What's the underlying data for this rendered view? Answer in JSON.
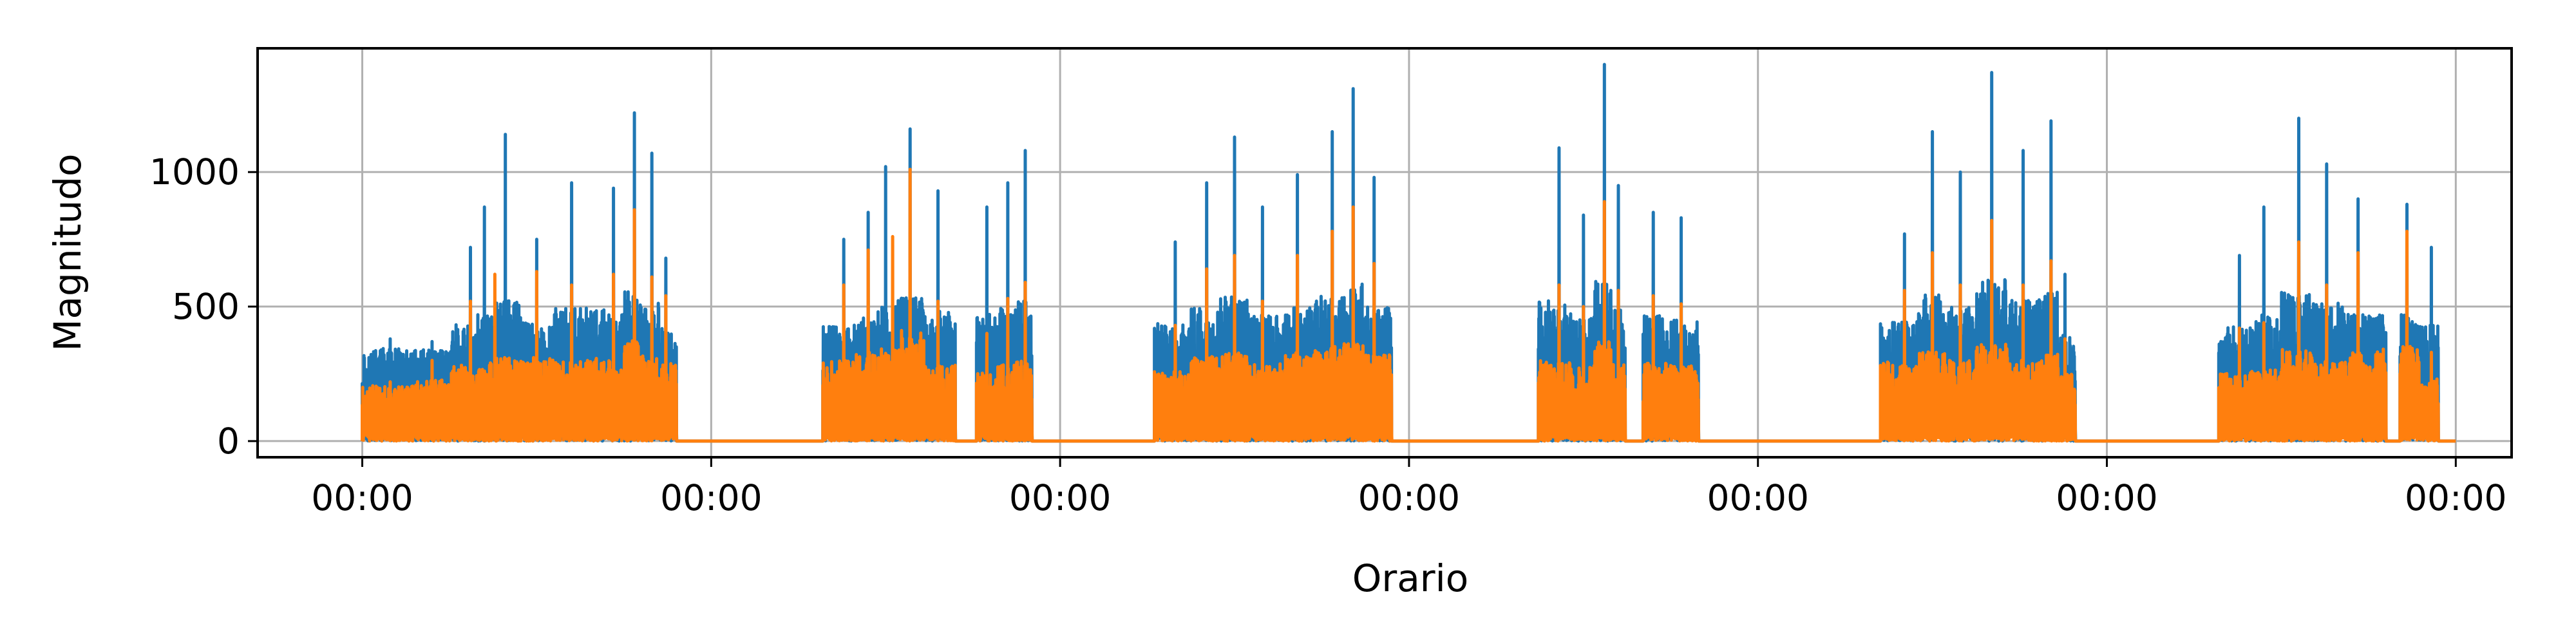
{
  "chart_data": {
    "type": "line",
    "xlabel": "Orario",
    "ylabel": "Magnitudo",
    "x_ticks": [
      "00:00",
      "00:00",
      "00:00",
      "00:00",
      "00:00",
      "00:00",
      "00:00"
    ],
    "x_tick_values": [
      0,
      1,
      2,
      3,
      4,
      5,
      6
    ],
    "xlim": [
      -0.3,
      6.16
    ],
    "y_ticks": [
      0,
      500,
      1000
    ],
    "ylim": [
      -60,
      1460
    ],
    "grid": true,
    "series_colors": [
      "#1f77b4",
      "#ff7f0e"
    ],
    "active_periods": [
      [
        [
          0.0,
          0.9
        ]
      ],
      [
        [
          1.32,
          1.7
        ],
        [
          1.76,
          1.92
        ]
      ],
      [
        [
          2.27,
          2.95
        ]
      ],
      [
        [
          3.37,
          3.62
        ],
        [
          3.67,
          3.83
        ]
      ],
      [
        [
          4.35,
          4.91
        ]
      ],
      [
        [
          5.32,
          5.8
        ],
        [
          5.84,
          5.95
        ]
      ]
    ],
    "series": [
      {
        "peaks": [
          [
            0.08,
            380
          ],
          [
            0.2,
            370
          ],
          [
            0.31,
            720
          ],
          [
            0.35,
            870
          ],
          [
            0.41,
            1140
          ],
          [
            0.5,
            750
          ],
          [
            0.6,
            960
          ],
          [
            0.72,
            940
          ],
          [
            0.78,
            1220
          ],
          [
            0.83,
            1070
          ],
          [
            0.87,
            680
          ],
          [
            1.38,
            750
          ],
          [
            1.45,
            850
          ],
          [
            1.5,
            1020
          ],
          [
            1.57,
            1160
          ],
          [
            1.65,
            930
          ],
          [
            1.79,
            870
          ],
          [
            1.85,
            960
          ],
          [
            1.9,
            1080
          ],
          [
            2.33,
            740
          ],
          [
            2.42,
            960
          ],
          [
            2.5,
            1130
          ],
          [
            2.58,
            870
          ],
          [
            2.68,
            990
          ],
          [
            2.78,
            1150
          ],
          [
            2.84,
            1310
          ],
          [
            2.9,
            980
          ],
          [
            3.43,
            1090
          ],
          [
            3.5,
            840
          ],
          [
            3.56,
            1400
          ],
          [
            3.6,
            950
          ],
          [
            3.7,
            850
          ],
          [
            3.78,
            830
          ],
          [
            4.42,
            770
          ],
          [
            4.5,
            1150
          ],
          [
            4.58,
            1000
          ],
          [
            4.67,
            1370
          ],
          [
            4.76,
            1080
          ],
          [
            4.84,
            1190
          ],
          [
            4.88,
            620
          ],
          [
            5.38,
            690
          ],
          [
            5.45,
            870
          ],
          [
            5.55,
            1200
          ],
          [
            5.63,
            1030
          ],
          [
            5.72,
            900
          ],
          [
            5.86,
            880
          ],
          [
            5.93,
            720
          ]
        ]
      },
      {
        "peaks": [
          [
            0.08,
            220
          ],
          [
            0.2,
            300
          ],
          [
            0.31,
            520
          ],
          [
            0.38,
            620
          ],
          [
            0.5,
            630
          ],
          [
            0.6,
            580
          ],
          [
            0.72,
            620
          ],
          [
            0.78,
            860
          ],
          [
            0.83,
            610
          ],
          [
            0.87,
            540
          ],
          [
            1.38,
            580
          ],
          [
            1.45,
            710
          ],
          [
            1.52,
            760
          ],
          [
            1.57,
            1010
          ],
          [
            1.65,
            520
          ],
          [
            1.79,
            400
          ],
          [
            1.85,
            530
          ],
          [
            1.9,
            590
          ],
          [
            2.33,
            430
          ],
          [
            2.42,
            640
          ],
          [
            2.5,
            690
          ],
          [
            2.58,
            520
          ],
          [
            2.68,
            690
          ],
          [
            2.78,
            780
          ],
          [
            2.84,
            870
          ],
          [
            2.9,
            660
          ],
          [
            3.43,
            580
          ],
          [
            3.5,
            500
          ],
          [
            3.56,
            890
          ],
          [
            3.6,
            560
          ],
          [
            3.7,
            540
          ],
          [
            3.78,
            510
          ],
          [
            4.42,
            560
          ],
          [
            4.5,
            700
          ],
          [
            4.58,
            580
          ],
          [
            4.67,
            820
          ],
          [
            4.76,
            580
          ],
          [
            4.84,
            670
          ],
          [
            4.88,
            380
          ],
          [
            5.38,
            420
          ],
          [
            5.45,
            440
          ],
          [
            5.55,
            740
          ],
          [
            5.63,
            580
          ],
          [
            5.72,
            700
          ],
          [
            5.86,
            780
          ],
          [
            5.93,
            330
          ]
        ]
      }
    ]
  }
}
